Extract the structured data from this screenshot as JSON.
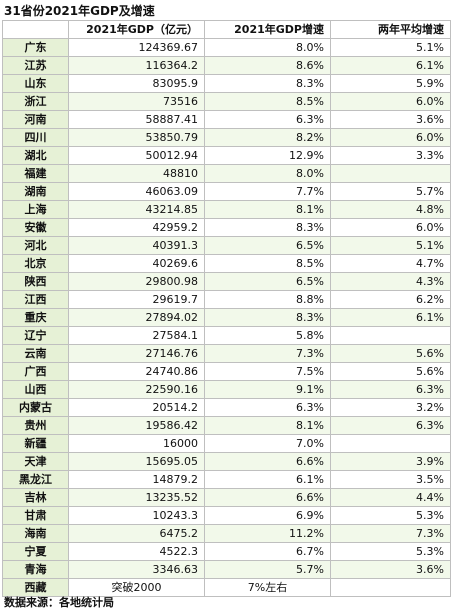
{
  "title": "31省份2021年GDP及增速",
  "headers": [
    "",
    "2021年GDP（亿元）",
    "2021年GDP增速",
    "两年平均增速"
  ],
  "rows": [
    {
      "province": "广东",
      "gdp": "124369.67",
      "growth_2021": "8.0%",
      "avg_2y": "5.1%"
    },
    {
      "province": "江苏",
      "gdp": "116364.2",
      "growth_2021": "8.6%",
      "avg_2y": "6.1%"
    },
    {
      "province": "山东",
      "gdp": "83095.9",
      "growth_2021": "8.3%",
      "avg_2y": "5.9%"
    },
    {
      "province": "浙江",
      "gdp": "73516",
      "growth_2021": "8.5%",
      "avg_2y": "6.0%"
    },
    {
      "province": "河南",
      "gdp": "58887.41",
      "growth_2021": "6.3%",
      "avg_2y": "3.6%"
    },
    {
      "province": "四川",
      "gdp": "53850.79",
      "growth_2021": "8.2%",
      "avg_2y": "6.0%"
    },
    {
      "province": "湖北",
      "gdp": "50012.94",
      "growth_2021": "12.9%",
      "avg_2y": "3.3%"
    },
    {
      "province": "福建",
      "gdp": "48810",
      "growth_2021": "8.0%",
      "avg_2y": ""
    },
    {
      "province": "湖南",
      "gdp": "46063.09",
      "growth_2021": "7.7%",
      "avg_2y": "5.7%"
    },
    {
      "province": "上海",
      "gdp": "43214.85",
      "growth_2021": "8.1%",
      "avg_2y": "4.8%"
    },
    {
      "province": "安徽",
      "gdp": "42959.2",
      "growth_2021": "8.3%",
      "avg_2y": "6.0%"
    },
    {
      "province": "河北",
      "gdp": "40391.3",
      "growth_2021": "6.5%",
      "avg_2y": "5.1%"
    },
    {
      "province": "北京",
      "gdp": "40269.6",
      "growth_2021": "8.5%",
      "avg_2y": "4.7%"
    },
    {
      "province": "陕西",
      "gdp": "29800.98",
      "growth_2021": "6.5%",
      "avg_2y": "4.3%"
    },
    {
      "province": "江西",
      "gdp": "29619.7",
      "growth_2021": "8.8%",
      "avg_2y": "6.2%"
    },
    {
      "province": "重庆",
      "gdp": "27894.02",
      "growth_2021": "8.3%",
      "avg_2y": "6.1%"
    },
    {
      "province": "辽宁",
      "gdp": "27584.1",
      "growth_2021": "5.8%",
      "avg_2y": ""
    },
    {
      "province": "云南",
      "gdp": "27146.76",
      "growth_2021": "7.3%",
      "avg_2y": "5.6%"
    },
    {
      "province": "广西",
      "gdp": "24740.86",
      "growth_2021": "7.5%",
      "avg_2y": "5.6%"
    },
    {
      "province": "山西",
      "gdp": "22590.16",
      "growth_2021": "9.1%",
      "avg_2y": "6.3%"
    },
    {
      "province": "内蒙古",
      "gdp": "20514.2",
      "growth_2021": "6.3%",
      "avg_2y": "3.2%"
    },
    {
      "province": "贵州",
      "gdp": "19586.42",
      "growth_2021": "8.1%",
      "avg_2y": "6.3%"
    },
    {
      "province": "新疆",
      "gdp": "16000",
      "growth_2021": "7.0%",
      "avg_2y": ""
    },
    {
      "province": "天津",
      "gdp": "15695.05",
      "growth_2021": "6.6%",
      "avg_2y": "3.9%"
    },
    {
      "province": "黑龙江",
      "gdp": "14879.2",
      "growth_2021": "6.1%",
      "avg_2y": "3.5%"
    },
    {
      "province": "吉林",
      "gdp": "13235.52",
      "growth_2021": "6.6%",
      "avg_2y": "4.4%"
    },
    {
      "province": "甘肃",
      "gdp": "10243.3",
      "growth_2021": "6.9%",
      "avg_2y": "5.3%"
    },
    {
      "province": "海南",
      "gdp": "6475.2",
      "growth_2021": "11.2%",
      "avg_2y": "7.3%"
    },
    {
      "province": "宁夏",
      "gdp": "4522.3",
      "growth_2021": "6.7%",
      "avg_2y": "5.3%"
    },
    {
      "province": "青海",
      "gdp": "3346.63",
      "growth_2021": "5.7%",
      "avg_2y": "3.6%"
    },
    {
      "province": "西藏",
      "gdp": "突破2000",
      "growth_2021": "7%左右",
      "avg_2y": ""
    }
  ],
  "source": "数据来源：各地统计局"
}
